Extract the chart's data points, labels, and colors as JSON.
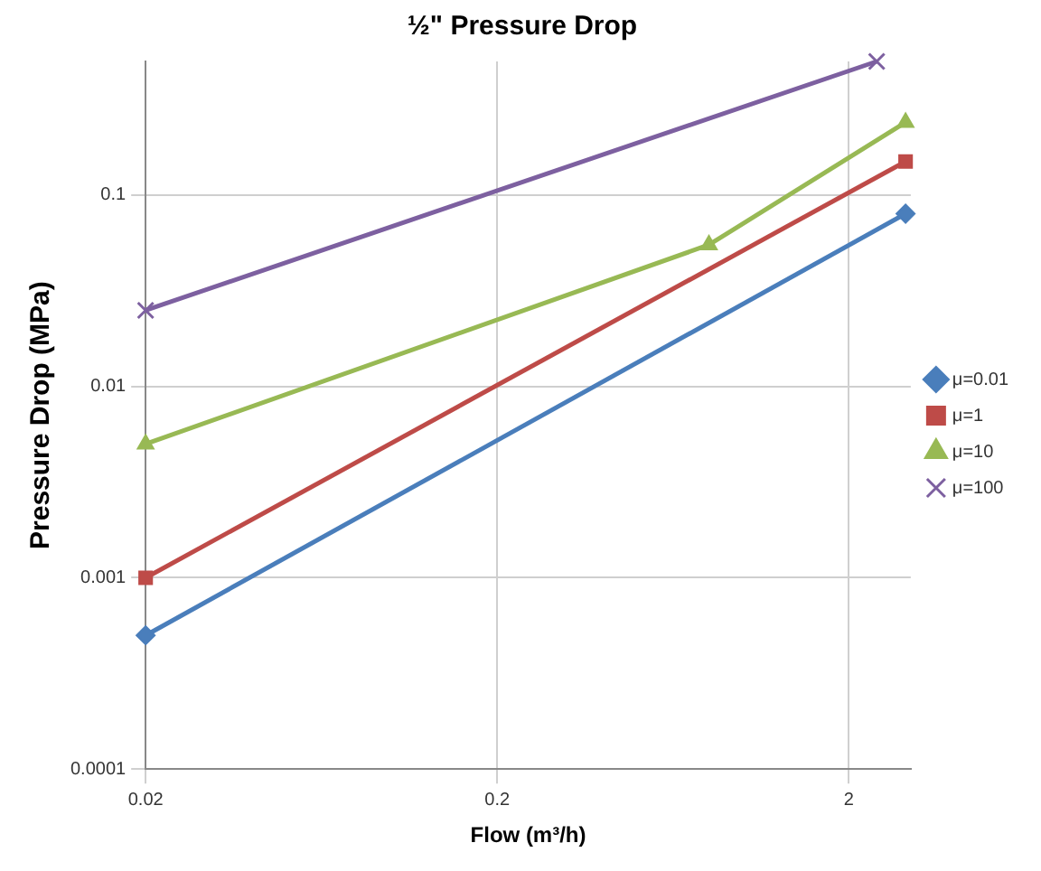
{
  "chart_data": {
    "type": "line",
    "title": "½\" Pressure Drop",
    "xlabel": "Flow (m³/h)",
    "ylabel": "Pressure Drop (MPa)",
    "log": "xy",
    "grid": true,
    "legend": "right",
    "xlim": [
      0.02,
      3
    ],
    "xticks": [
      0.02,
      0.2,
      2
    ],
    "ylim": [
      0.0001,
      0.5
    ],
    "yticks": [
      0.0001,
      0.001,
      0.01,
      0.1
    ],
    "series": [
      {
        "name": "μ=0.01",
        "color": "#4a7ebb",
        "marker": "diamond",
        "x": [
          0.02,
          2.9
        ],
        "values": [
          0.0005,
          0.08
        ]
      },
      {
        "name": "μ=1",
        "color": "#be4b48",
        "marker": "square",
        "x": [
          0.02,
          2.9
        ],
        "values": [
          0.001,
          0.15
        ]
      },
      {
        "name": "μ=10",
        "color": "#98b954",
        "marker": "triangle",
        "x": [
          0.02,
          0.8,
          2.9
        ],
        "values": [
          0.005,
          0.055,
          0.24
        ]
      },
      {
        "name": "μ=100",
        "color": "#7d60a0",
        "marker": "cross",
        "x": [
          0.02,
          2.4
        ],
        "values": [
          0.025,
          0.5
        ]
      }
    ]
  }
}
